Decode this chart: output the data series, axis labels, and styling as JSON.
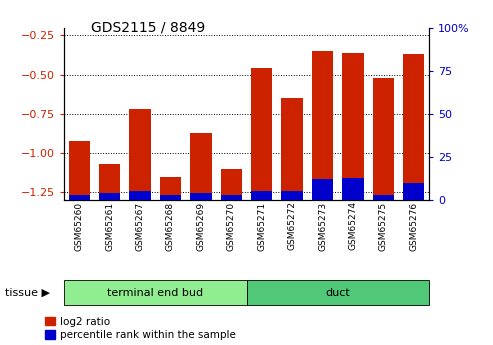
{
  "title": "GDS2115 / 8849",
  "samples": [
    "GSM65260",
    "GSM65261",
    "GSM65267",
    "GSM65268",
    "GSM65269",
    "GSM65270",
    "GSM65271",
    "GSM65272",
    "GSM65273",
    "GSM65274",
    "GSM65275",
    "GSM65276"
  ],
  "log2_ratio": [
    -0.92,
    -1.07,
    -0.72,
    -1.15,
    -0.87,
    -1.1,
    -0.46,
    -0.65,
    -0.35,
    -0.36,
    -0.52,
    -0.37
  ],
  "percentile_rank": [
    3,
    4,
    5,
    3,
    4,
    3,
    5,
    5,
    12,
    13,
    3,
    10
  ],
  "groups": [
    {
      "label": "terminal end bud",
      "start": 0,
      "end": 5,
      "color": "#90EE90"
    },
    {
      "label": "duct",
      "start": 6,
      "end": 11,
      "color": "#50C878"
    }
  ],
  "ylim_left": [
    -1.3,
    -0.2
  ],
  "ylim_right": [
    0,
    100
  ],
  "left_yticks": [
    -1.25,
    -1.0,
    -0.75,
    -0.5,
    -0.25
  ],
  "right_yticks": [
    0,
    25,
    50,
    75,
    100
  ],
  "bar_color_red": "#CC2200",
  "bar_color_blue": "#0000CC",
  "bar_width": 0.7,
  "background_color": "#ffffff",
  "plot_bg_color": "#ffffff",
  "legend_red_label": "log2 ratio",
  "legend_blue_label": "percentile rank within the sample",
  "tissue_label": "tissue",
  "left_label_color": "#CC2200",
  "right_label_color": "#0000CC"
}
